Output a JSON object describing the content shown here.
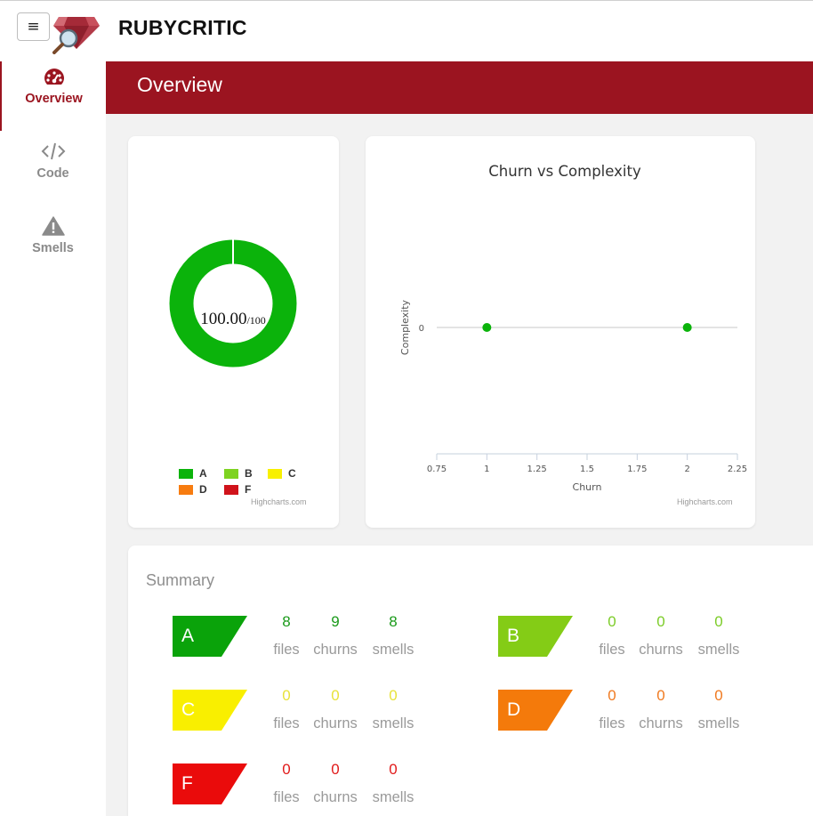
{
  "app": {
    "brand": "RUBYCRITIC"
  },
  "sidebar": {
    "items": [
      {
        "label": "Overview",
        "icon": "dashboard-icon",
        "active": true
      },
      {
        "label": "Code",
        "icon": "code-icon",
        "active": false
      },
      {
        "label": "Smells",
        "icon": "warning-icon",
        "active": false
      }
    ]
  },
  "page": {
    "title": "Overview"
  },
  "donut": {
    "score": "100.00",
    "score_max": "/100",
    "credit": "Highcharts.com",
    "legend": [
      {
        "label": "A",
        "color": "#0bb30b"
      },
      {
        "label": "B",
        "color": "#7ed321"
      },
      {
        "label": "C",
        "color": "#f8f000"
      },
      {
        "label": "D",
        "color": "#f77c10"
      },
      {
        "label": "F",
        "color": "#d0131b"
      }
    ]
  },
  "chart_data": {
    "type": "scatter",
    "title": "Churn vs Complexity",
    "xlabel": "Churn",
    "ylabel": "Complexity",
    "xlim": [
      0.75,
      2.25
    ],
    "x_ticks": [
      "0.75",
      "1",
      "1.25",
      "1.5",
      "1.75",
      "2",
      "2.25"
    ],
    "y_ticks": [
      "0"
    ],
    "points": [
      {
        "x": 1,
        "y": 0
      },
      {
        "x": 2,
        "y": 0
      }
    ],
    "credit": "Highcharts.com"
  },
  "summary": {
    "title": "Summary",
    "labels": {
      "files": "files",
      "churns": "churns",
      "smells": "smells"
    },
    "grades": [
      {
        "grade": "A",
        "color": "#0aa30a",
        "text_color": "#1a9a1a",
        "files": "8",
        "churns": "9",
        "smells": "8"
      },
      {
        "grade": "B",
        "color": "#84cc16",
        "text_color": "#7ccc28",
        "files": "0",
        "churns": "0",
        "smells": "0"
      },
      {
        "grade": "C",
        "color": "#f9ef00",
        "text_color": "#e8e23a",
        "files": "0",
        "churns": "0",
        "smells": "0"
      },
      {
        "grade": "D",
        "color": "#f47a0b",
        "text_color": "#f07a20",
        "files": "0",
        "churns": "0",
        "smells": "0"
      },
      {
        "grade": "F",
        "color": "#ea0b0b",
        "text_color": "#e11a1a",
        "files": "0",
        "churns": "0",
        "smells": "0"
      }
    ]
  }
}
